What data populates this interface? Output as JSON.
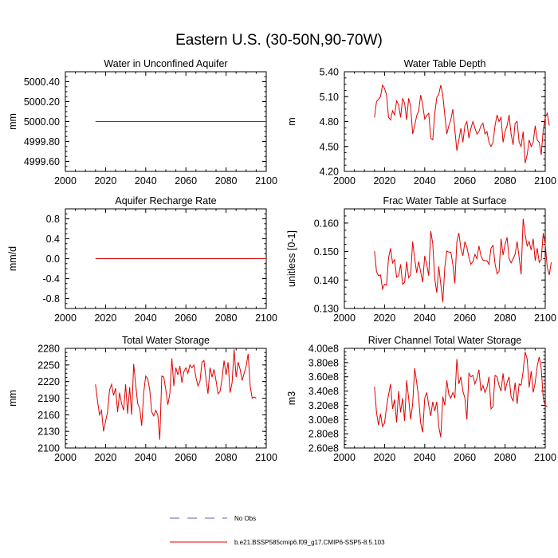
{
  "title": "Eastern U.S. (30-50N,90-70W)",
  "legend": {
    "entries": [
      {
        "label": "No Obs",
        "style": "dashed",
        "color": "#6060a0"
      },
      {
        "label": "b.e21.BSSP585cmip6.f09_g17.CMIP6-SSP5-8.5.103",
        "style": "solid",
        "color": "#e00000"
      }
    ]
  },
  "series_color": "#e00000",
  "chart_data": [
    {
      "type": "line",
      "title": "Water in Unconfined Aquifer",
      "ylabel": "mm",
      "xlim": [
        2000,
        2100
      ],
      "ylim": [
        4999.5,
        5000.5
      ],
      "xticks": [
        2000,
        2020,
        2040,
        2060,
        2080,
        2100
      ],
      "yticks": [
        4999.6,
        4999.8,
        5000.0,
        5000.2,
        5000.4
      ],
      "yticklabels": [
        "4999.60",
        "4999.80",
        "5000.00",
        "5000.20",
        "5000.40"
      ],
      "x_start": 2015,
      "values": [
        5000,
        5000,
        5000,
        5000,
        5000,
        5000,
        5000,
        5000,
        5000,
        5000,
        5000,
        5000,
        5000,
        5000,
        5000,
        5000,
        5000,
        5000,
        5000,
        5000,
        5000,
        5000,
        5000,
        5000,
        5000,
        5000,
        5000,
        5000,
        5000,
        5000,
        5000,
        5000,
        5000,
        5000,
        5000,
        5000,
        5000,
        5000,
        5000,
        5000,
        5000,
        5000,
        5000,
        5000,
        5000,
        5000,
        5000,
        5000,
        5000,
        5000,
        5000,
        5000,
        5000,
        5000,
        5000,
        5000,
        5000,
        5000,
        5000,
        5000,
        5000,
        5000,
        5000,
        5000,
        5000,
        5000,
        5000,
        5000,
        5000,
        5000,
        5000,
        5000,
        5000,
        5000,
        5000,
        5000,
        5000,
        5000,
        5000,
        5000,
        5000,
        5000,
        5000,
        5000,
        5000,
        5000
      ]
    },
    {
      "type": "line",
      "title": "Water Table Depth",
      "ylabel": "m",
      "xlim": [
        2000,
        2100
      ],
      "ylim": [
        4.2,
        5.4
      ],
      "xticks": [
        2000,
        2020,
        2040,
        2060,
        2080,
        2100
      ],
      "yticks": [
        4.2,
        4.5,
        4.8,
        5.1,
        5.4
      ],
      "yticklabels": [
        "4.20",
        "4.50",
        "4.80",
        "5.10",
        "5.40"
      ],
      "x_start": 2015,
      "values": [
        4.85,
        5.04,
        5.07,
        5.1,
        5.24,
        5.2,
        5.12,
        4.85,
        4.82,
        4.93,
        4.88,
        5.05,
        5.0,
        4.85,
        5.08,
        5.02,
        4.82,
        5.08,
        4.98,
        4.65,
        4.75,
        4.87,
        4.93,
        5.12,
        5.0,
        4.83,
        4.87,
        4.9,
        4.6,
        4.58,
        4.9,
        5.09,
        5.13,
        5.24,
        5.12,
        4.88,
        4.65,
        4.75,
        4.82,
        4.95,
        4.7,
        4.45,
        4.58,
        4.72,
        4.55,
        4.75,
        4.8,
        4.6,
        4.72,
        4.8,
        4.72,
        4.65,
        4.68,
        4.75,
        4.78,
        4.65,
        4.68,
        4.55,
        4.5,
        4.55,
        4.75,
        4.88,
        4.8,
        4.85,
        4.55,
        4.68,
        4.75,
        4.88,
        4.65,
        4.52,
        4.78,
        4.8,
        4.55,
        4.5,
        4.68,
        4.3,
        4.4,
        4.58,
        4.5,
        4.55,
        4.75,
        4.58,
        4.55,
        4.4,
        4.7,
        4.85,
        4.9,
        4.75
      ]
    },
    {
      "type": "line",
      "title": "Aquifer Recharge Rate",
      "ylabel": "mm/d",
      "xlim": [
        2000,
        2100
      ],
      "ylim": [
        -1.0,
        1.0
      ],
      "xticks": [
        2000,
        2020,
        2040,
        2060,
        2080,
        2100
      ],
      "yticks": [
        -0.8,
        -0.4,
        0.0,
        0.4,
        0.8
      ],
      "yticklabels": [
        "-0.8",
        "-0.4",
        "0.0",
        "0.4",
        "0.8"
      ],
      "x_start": 2015,
      "values": [
        0,
        0,
        0,
        0,
        0,
        0,
        0,
        0,
        0,
        0,
        0,
        0,
        0,
        0,
        0,
        0,
        0,
        0,
        0,
        0,
        0,
        0,
        0,
        0,
        0,
        0,
        0,
        0,
        0,
        0,
        0,
        0,
        0,
        0,
        0,
        0,
        0,
        0,
        0,
        0,
        0,
        0,
        0,
        0,
        0,
        0,
        0,
        0,
        0,
        0,
        0,
        0,
        0,
        0,
        0,
        0,
        0,
        0,
        0,
        0,
        0,
        0,
        0,
        0,
        0,
        0,
        0,
        0,
        0,
        0,
        0,
        0,
        0,
        0,
        0,
        0,
        0,
        0,
        0,
        0,
        0,
        0,
        0,
        0,
        0,
        0
      ]
    },
    {
      "type": "line",
      "title": "Frac Water Table at Surface",
      "ylabel": "unitless [0-1]",
      "xlim": [
        2000,
        2100
      ],
      "ylim": [
        0.13,
        0.165
      ],
      "xticks": [
        2000,
        2020,
        2040,
        2060,
        2080,
        2100
      ],
      "yticks": [
        0.13,
        0.14,
        0.15,
        0.16
      ],
      "yticklabels": [
        "0.130",
        "0.140",
        "0.150",
        "0.160"
      ],
      "x_start": 2015,
      "values": [
        0.1502,
        0.143,
        0.1415,
        0.1418,
        0.1368,
        0.1385,
        0.1382,
        0.1478,
        0.1512,
        0.146,
        0.1472,
        0.141,
        0.1415,
        0.1455,
        0.1385,
        0.1392,
        0.1465,
        0.1408,
        0.1418,
        0.1535,
        0.1475,
        0.1425,
        0.1465,
        0.1428,
        0.1392,
        0.1485,
        0.1455,
        0.1415,
        0.1572,
        0.1528,
        0.1405,
        0.1355,
        0.1448,
        0.1385,
        0.1322,
        0.1445,
        0.1502,
        0.1498,
        0.1498,
        0.1455,
        0.1388,
        0.1535,
        0.1565,
        0.151,
        0.1485,
        0.1535,
        0.1515,
        0.148,
        0.1455,
        0.1465,
        0.149,
        0.1475,
        0.152,
        0.1485,
        0.147,
        0.1468,
        0.1468,
        0.1455,
        0.1512,
        0.1522,
        0.1458,
        0.1422,
        0.143,
        0.1545,
        0.1488,
        0.1525,
        0.155,
        0.1475,
        0.146,
        0.1475,
        0.149,
        0.1535,
        0.148,
        0.142,
        0.1615,
        0.156,
        0.152,
        0.1535,
        0.1505,
        0.1545,
        0.1468,
        0.1512,
        0.1462,
        0.1472,
        0.1565,
        0.1525,
        0.1445,
        0.1418,
        0.1462
      ]
    },
    {
      "type": "line",
      "title": "Total Water Storage",
      "ylabel": "mm",
      "xlim": [
        2000,
        2100
      ],
      "ylim": [
        2100,
        2280
      ],
      "xticks": [
        2000,
        2020,
        2040,
        2060,
        2080,
        2100
      ],
      "yticks": [
        2100,
        2130,
        2160,
        2190,
        2220,
        2250,
        2280
      ],
      "yticklabels": [
        "2100",
        "2130",
        "2160",
        "2190",
        "2220",
        "2250",
        "2280"
      ],
      "x_start": 2015,
      "values": [
        2215,
        2185,
        2160,
        2168,
        2130,
        2148,
        2165,
        2205,
        2215,
        2195,
        2208,
        2165,
        2200,
        2180,
        2168,
        2215,
        2162,
        2210,
        2160,
        2252,
        2215,
        2180,
        2172,
        2140,
        2200,
        2230,
        2225,
        2205,
        2165,
        2158,
        2168,
        2160,
        2115,
        2230,
        2228,
        2205,
        2178,
        2198,
        2262,
        2212,
        2245,
        2232,
        2248,
        2218,
        2238,
        2245,
        2235,
        2250,
        2245,
        2250,
        2228,
        2212,
        2220,
        2255,
        2258,
        2225,
        2198,
        2245,
        2228,
        2242,
        2222,
        2198,
        2202,
        2225,
        2258,
        2232,
        2255,
        2200,
        2218,
        2278,
        2228,
        2255,
        2242,
        2222,
        2235,
        2248,
        2270,
        2212,
        2190,
        2192,
        2190
      ]
    },
    {
      "type": "line",
      "title": "River Channel Total Water Storage",
      "ylabel": "m3",
      "xlim": [
        2000,
        2100
      ],
      "ylim": [
        260000000,
        400000000
      ],
      "xticks": [
        2000,
        2020,
        2040,
        2060,
        2080,
        2100
      ],
      "yticks": [
        260000000,
        280000000,
        300000000,
        320000000,
        340000000,
        360000000,
        380000000,
        400000000
      ],
      "yticklabels": [
        "2.60e8",
        "2.80e8",
        "3.00e8",
        "3.20e8",
        "3.40e8",
        "3.60e8",
        "3.80e8",
        "4.00e8"
      ],
      "x_start": 2015,
      "values": [
        346000000,
        310000000,
        292000000,
        308000000,
        290000000,
        295000000,
        318000000,
        335000000,
        350000000,
        315000000,
        328000000,
        296000000,
        340000000,
        310000000,
        330000000,
        298000000,
        355000000,
        330000000,
        300000000,
        322000000,
        372000000,
        352000000,
        330000000,
        295000000,
        282000000,
        330000000,
        338000000,
        320000000,
        305000000,
        325000000,
        312000000,
        325000000,
        290000000,
        275000000,
        332000000,
        320000000,
        355000000,
        335000000,
        330000000,
        338000000,
        330000000,
        385000000,
        350000000,
        360000000,
        340000000,
        330000000,
        300000000,
        365000000,
        360000000,
        362000000,
        350000000,
        358000000,
        370000000,
        340000000,
        348000000,
        338000000,
        345000000,
        360000000,
        315000000,
        318000000,
        362000000,
        360000000,
        348000000,
        340000000,
        365000000,
        340000000,
        352000000,
        360000000,
        332000000,
        326000000,
        352000000,
        322000000,
        350000000,
        348000000,
        368000000,
        395000000,
        385000000,
        345000000,
        368000000,
        338000000,
        352000000,
        375000000,
        388000000,
        372000000,
        330000000,
        320000000,
        318000000
      ]
    }
  ]
}
